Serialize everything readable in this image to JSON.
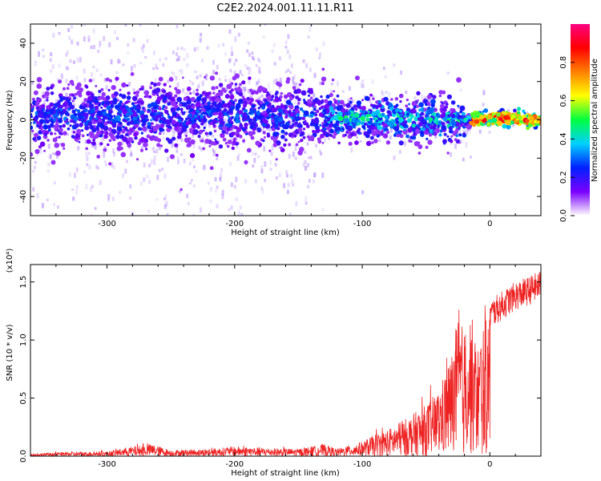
{
  "title": "C2E2.2024.001.11.11.R11",
  "chart_data": [
    {
      "type": "heatmap",
      "xlabel": "Height of straight line (km)",
      "ylabel": "Frequency (Hz)",
      "xlim": [
        -360,
        40
      ],
      "ylim": [
        -50,
        50
      ],
      "xticks": [
        -300,
        -200,
        -100,
        0
      ],
      "yticks": [
        -40,
        -20,
        0,
        20,
        40
      ],
      "colorbar": {
        "label": "Normalized spectral amplitude",
        "range": [
          0,
          1
        ],
        "ticks": [
          0.0,
          0.2,
          0.4,
          0.6,
          0.8
        ],
        "tick_labels": [
          "0.0",
          "0.2",
          "0.4",
          "0.6",
          "0.8"
        ],
        "colors": [
          "#ffffff",
          "#7a00ff",
          "#0020ff",
          "#00d0ff",
          "#00ff40",
          "#ffff00",
          "#ff8000",
          "#ff0000",
          "#ff0080"
        ]
      },
      "band_center_hz": [
        {
          "x": -360,
          "y": 2
        },
        {
          "x": -200,
          "y": 2
        },
        {
          "x": -100,
          "y": 1
        },
        {
          "x": -40,
          "y": -1
        },
        {
          "x": 0,
          "y": 1
        },
        {
          "x": 40,
          "y": 0
        }
      ]
    },
    {
      "type": "line",
      "xlabel": "Height of straight line (km)",
      "ylabel": "SNR (10 * v/v)",
      "y_multiplier": "(x10⁴)",
      "xlim": [
        -360,
        40
      ],
      "ylim": [
        0,
        1.65
      ],
      "xticks": [
        -300,
        -200,
        -100,
        0
      ],
      "yticks": [
        0.0,
        0.5,
        1.0,
        1.5
      ],
      "ytick_labels": [
        "0.0",
        "0.5",
        "1.0",
        "1.5"
      ],
      "series": [
        {
          "color": "#ee2222",
          "x": [
            -360,
            -340,
            -300,
            -280,
            -265,
            -250,
            -220,
            -200,
            -180,
            -150,
            -130,
            -120,
            -100,
            -90,
            -80,
            -70,
            -60,
            -50,
            -40,
            -30,
            -25,
            -20,
            -15,
            -10,
            -5,
            0,
            10,
            20,
            30,
            40
          ],
          "y": [
            0.02,
            0.03,
            0.04,
            0.08,
            0.1,
            0.05,
            0.06,
            0.08,
            0.07,
            0.06,
            0.1,
            0.06,
            0.12,
            0.18,
            0.22,
            0.28,
            0.35,
            0.42,
            0.55,
            0.85,
            1.15,
            1.05,
            1.2,
            0.9,
            1.1,
            1.22,
            1.3,
            1.38,
            1.42,
            1.48
          ]
        }
      ]
    }
  ]
}
